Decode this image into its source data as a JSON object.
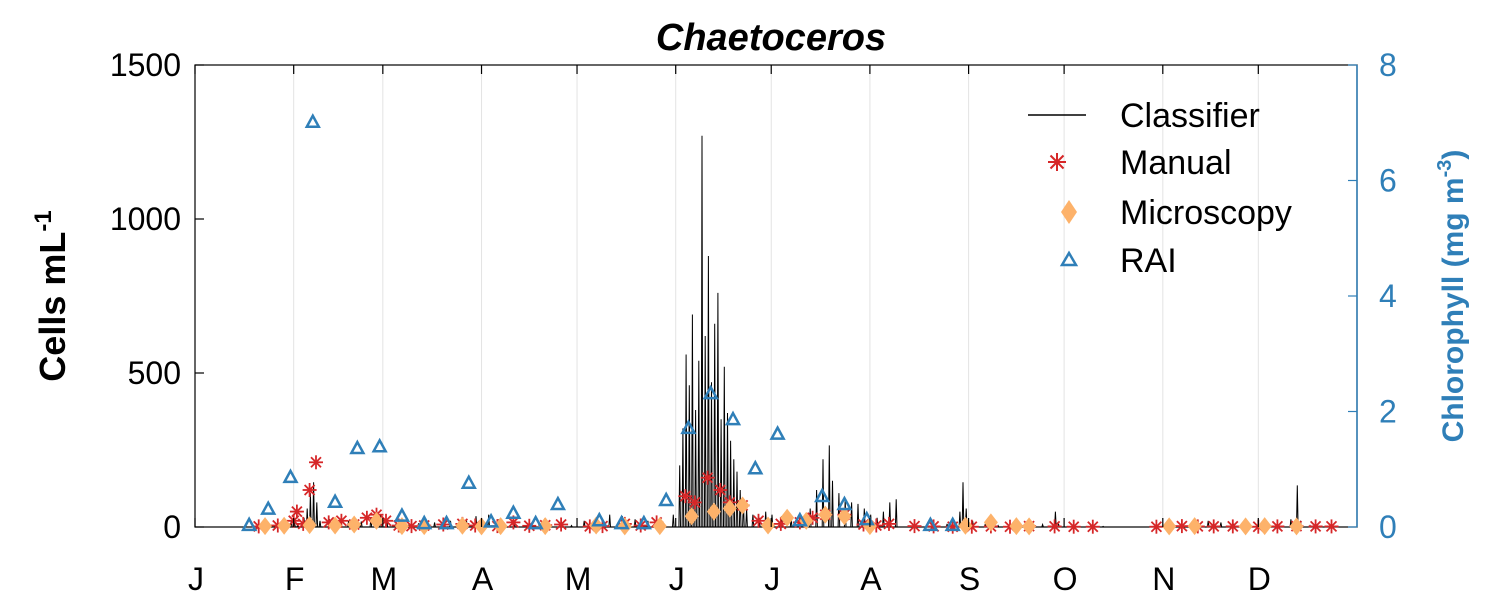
{
  "chart_data": {
    "type": "line",
    "title": "Chaetoceros",
    "ylabel": {
      "main": "Cells mL",
      "sup": "-1"
    },
    "ylabel_right": {
      "main": "Chlorophyll (mg m",
      "sup": "-3",
      "end": ")"
    },
    "xlim": [
      0,
      365
    ],
    "ylim": [
      0,
      1500
    ],
    "ylim_right": [
      0,
      8
    ],
    "yticks": [
      0,
      500,
      1000,
      1500
    ],
    "yticks_right": [
      0,
      2,
      4,
      6,
      8
    ],
    "month_labels": [
      "J",
      "F",
      "M",
      "A",
      "M",
      "J",
      "J",
      "A",
      "S",
      "O",
      "N",
      "D"
    ],
    "month_starts": [
      0,
      31,
      59,
      90,
      120,
      151,
      181,
      212,
      243,
      273,
      304,
      334
    ],
    "grid": true,
    "legend_position": "top-right",
    "colors": {
      "classifier": "#000000",
      "manual": "#d62728",
      "microscopy": "#fdb26a",
      "rai": "#2f7fb8",
      "right_axis": "#2f7fb8"
    },
    "series": [
      {
        "name": "Classifier",
        "kind": "line",
        "peaks": [
          [
            28,
            0
          ],
          [
            29,
            10
          ],
          [
            30,
            20
          ],
          [
            31,
            15
          ],
          [
            32,
            8
          ],
          [
            34,
            30
          ],
          [
            35,
            60
          ],
          [
            36,
            110
          ],
          [
            37,
            145
          ],
          [
            38,
            80
          ],
          [
            39,
            20
          ],
          [
            42,
            25
          ],
          [
            45,
            15
          ],
          [
            48,
            20
          ],
          [
            52,
            18
          ],
          [
            55,
            30
          ],
          [
            58,
            40
          ],
          [
            60,
            25
          ],
          [
            63,
            15
          ],
          [
            67,
            10
          ],
          [
            70,
            12
          ],
          [
            75,
            15
          ],
          [
            80,
            20
          ],
          [
            85,
            25
          ],
          [
            88,
            35
          ],
          [
            92,
            40
          ],
          [
            95,
            25
          ],
          [
            100,
            15
          ],
          [
            105,
            10
          ],
          [
            110,
            12
          ],
          [
            115,
            8
          ],
          [
            118,
            5
          ],
          [
            122,
            20
          ],
          [
            126,
            30
          ],
          [
            130,
            40
          ],
          [
            134,
            35
          ],
          [
            138,
            25
          ],
          [
            142,
            20
          ],
          [
            146,
            30
          ],
          [
            150,
            40
          ],
          [
            152,
            200
          ],
          [
            153,
            320
          ],
          [
            154,
            560
          ],
          [
            155,
            460
          ],
          [
            156,
            690
          ],
          [
            157,
            380
          ],
          [
            158,
            540
          ],
          [
            159,
            1270
          ],
          [
            160,
            620
          ],
          [
            161,
            880
          ],
          [
            162,
            470
          ],
          [
            163,
            660
          ],
          [
            164,
            760
          ],
          [
            165,
            350
          ],
          [
            166,
            520
          ],
          [
            167,
            370
          ],
          [
            168,
            280
          ],
          [
            169,
            220
          ],
          [
            170,
            180
          ],
          [
            171,
            120
          ],
          [
            172,
            90
          ],
          [
            173,
            60
          ],
          [
            175,
            40
          ],
          [
            177,
            30
          ],
          [
            179,
            50
          ],
          [
            181,
            40
          ],
          [
            184,
            35
          ],
          [
            187,
            30
          ],
          [
            190,
            40
          ],
          [
            193,
            60
          ],
          [
            195,
            120
          ],
          [
            197,
            220
          ],
          [
            199,
            265
          ],
          [
            200,
            150
          ],
          [
            202,
            110
          ],
          [
            204,
            90
          ],
          [
            206,
            80
          ],
          [
            208,
            75
          ],
          [
            210,
            60
          ],
          [
            212,
            40
          ],
          [
            214,
            30
          ],
          [
            216,
            50
          ],
          [
            218,
            80
          ],
          [
            220,
            90
          ],
          [
            221,
            0
          ],
          [
            232,
            5
          ],
          [
            236,
            10
          ],
          [
            240,
            50
          ],
          [
            241,
            145
          ],
          [
            242,
            60
          ],
          [
            244,
            20
          ],
          [
            248,
            10
          ],
          [
            252,
            5
          ],
          [
            256,
            3
          ],
          [
            260,
            5
          ],
          [
            266,
            8
          ],
          [
            270,
            50
          ],
          [
            271,
            10
          ],
          [
            276,
            5
          ],
          [
            281,
            3
          ],
          [
            285,
            2
          ],
          [
            310,
            5
          ],
          [
            314,
            15
          ],
          [
            318,
            20
          ],
          [
            322,
            15
          ],
          [
            326,
            10
          ],
          [
            330,
            5
          ],
          [
            334,
            3
          ],
          [
            340,
            5
          ],
          [
            344,
            25
          ],
          [
            346,
            135
          ],
          [
            347,
            20
          ],
          [
            350,
            5
          ],
          [
            356,
            3
          ]
        ]
      },
      {
        "name": "Manual",
        "kind": "marker",
        "marker": "asterisk",
        "points": [
          [
            20,
            2
          ],
          [
            26,
            5
          ],
          [
            31,
            20
          ],
          [
            32,
            50
          ],
          [
            34,
            10
          ],
          [
            36,
            120
          ],
          [
            38,
            210
          ],
          [
            42,
            15
          ],
          [
            46,
            20
          ],
          [
            50,
            8
          ],
          [
            54,
            30
          ],
          [
            57,
            40
          ],
          [
            60,
            20
          ],
          [
            64,
            5
          ],
          [
            68,
            3
          ],
          [
            72,
            5
          ],
          [
            78,
            8
          ],
          [
            84,
            10
          ],
          [
            88,
            5
          ],
          [
            95,
            3
          ],
          [
            100,
            15
          ],
          [
            105,
            4
          ],
          [
            110,
            6
          ],
          [
            115,
            8
          ],
          [
            124,
            2
          ],
          [
            128,
            3
          ],
          [
            135,
            10
          ],
          [
            140,
            5
          ],
          [
            145,
            15
          ],
          [
            154,
            100
          ],
          [
            157,
            80
          ],
          [
            161,
            160
          ],
          [
            165,
            120
          ],
          [
            168,
            80
          ],
          [
            172,
            70
          ],
          [
            177,
            20
          ],
          [
            184,
            10
          ],
          [
            190,
            15
          ],
          [
            194,
            30
          ],
          [
            198,
            40
          ],
          [
            204,
            40
          ],
          [
            210,
            8
          ],
          [
            214,
            5
          ],
          [
            218,
            10
          ],
          [
            226,
            3
          ],
          [
            232,
            2
          ],
          [
            238,
            1
          ],
          [
            244,
            1
          ],
          [
            250,
            2
          ],
          [
            256,
            1
          ],
          [
            262,
            3
          ],
          [
            270,
            2
          ],
          [
            276,
            1
          ],
          [
            282,
            1
          ],
          [
            302,
            1
          ],
          [
            310,
            3
          ],
          [
            315,
            2
          ],
          [
            320,
            2
          ],
          [
            326,
            2
          ],
          [
            334,
            1
          ],
          [
            340,
            2
          ],
          [
            346,
            3
          ],
          [
            352,
            2
          ],
          [
            357,
            2
          ]
        ]
      },
      {
        "name": "Microscopy",
        "kind": "marker",
        "marker": "diamond",
        "points": [
          [
            22,
            3
          ],
          [
            28,
            4
          ],
          [
            36,
            6
          ],
          [
            44,
            5
          ],
          [
            50,
            8
          ],
          [
            57,
            20
          ],
          [
            65,
            3
          ],
          [
            72,
            3
          ],
          [
            84,
            4
          ],
          [
            90,
            2
          ],
          [
            96,
            3
          ],
          [
            110,
            3
          ],
          [
            126,
            5
          ],
          [
            135,
            2
          ],
          [
            146,
            3
          ],
          [
            156,
            35
          ],
          [
            163,
            50
          ],
          [
            168,
            60
          ],
          [
            172,
            70
          ],
          [
            180,
            5
          ],
          [
            186,
            30
          ],
          [
            192,
            20
          ],
          [
            198,
            40
          ],
          [
            204,
            35
          ],
          [
            212,
            3
          ],
          [
            242,
            4
          ],
          [
            250,
            15
          ],
          [
            258,
            3
          ],
          [
            262,
            2
          ],
          [
            306,
            2
          ],
          [
            314,
            3
          ],
          [
            330,
            2
          ],
          [
            336,
            3
          ],
          [
            346,
            2
          ]
        ]
      },
      {
        "name": "RAI",
        "kind": "marker",
        "marker": "triangle",
        "axis": "right",
        "points": [
          [
            17,
            0.02
          ],
          [
            23,
            0.3
          ],
          [
            30,
            0.85
          ],
          [
            37,
            7.0
          ],
          [
            44,
            0.42
          ],
          [
            51,
            1.35
          ],
          [
            58,
            1.38
          ],
          [
            65,
            0.18
          ],
          [
            72,
            0.05
          ],
          [
            79,
            0.05
          ],
          [
            86,
            0.75
          ],
          [
            93,
            0.08
          ],
          [
            100,
            0.23
          ],
          [
            107,
            0.05
          ],
          [
            114,
            0.38
          ],
          [
            127,
            0.1
          ],
          [
            134,
            0.05
          ],
          [
            141,
            0.05
          ],
          [
            148,
            0.45
          ],
          [
            155,
            1.7
          ],
          [
            162,
            2.3
          ],
          [
            169,
            1.85
          ],
          [
            176,
            1.0
          ],
          [
            183,
            1.6
          ],
          [
            190,
            0.1
          ],
          [
            197,
            0.52
          ],
          [
            204,
            0.38
          ],
          [
            211,
            0.12
          ],
          [
            231,
            0.02
          ],
          [
            238,
            0.02
          ]
        ]
      }
    ]
  }
}
